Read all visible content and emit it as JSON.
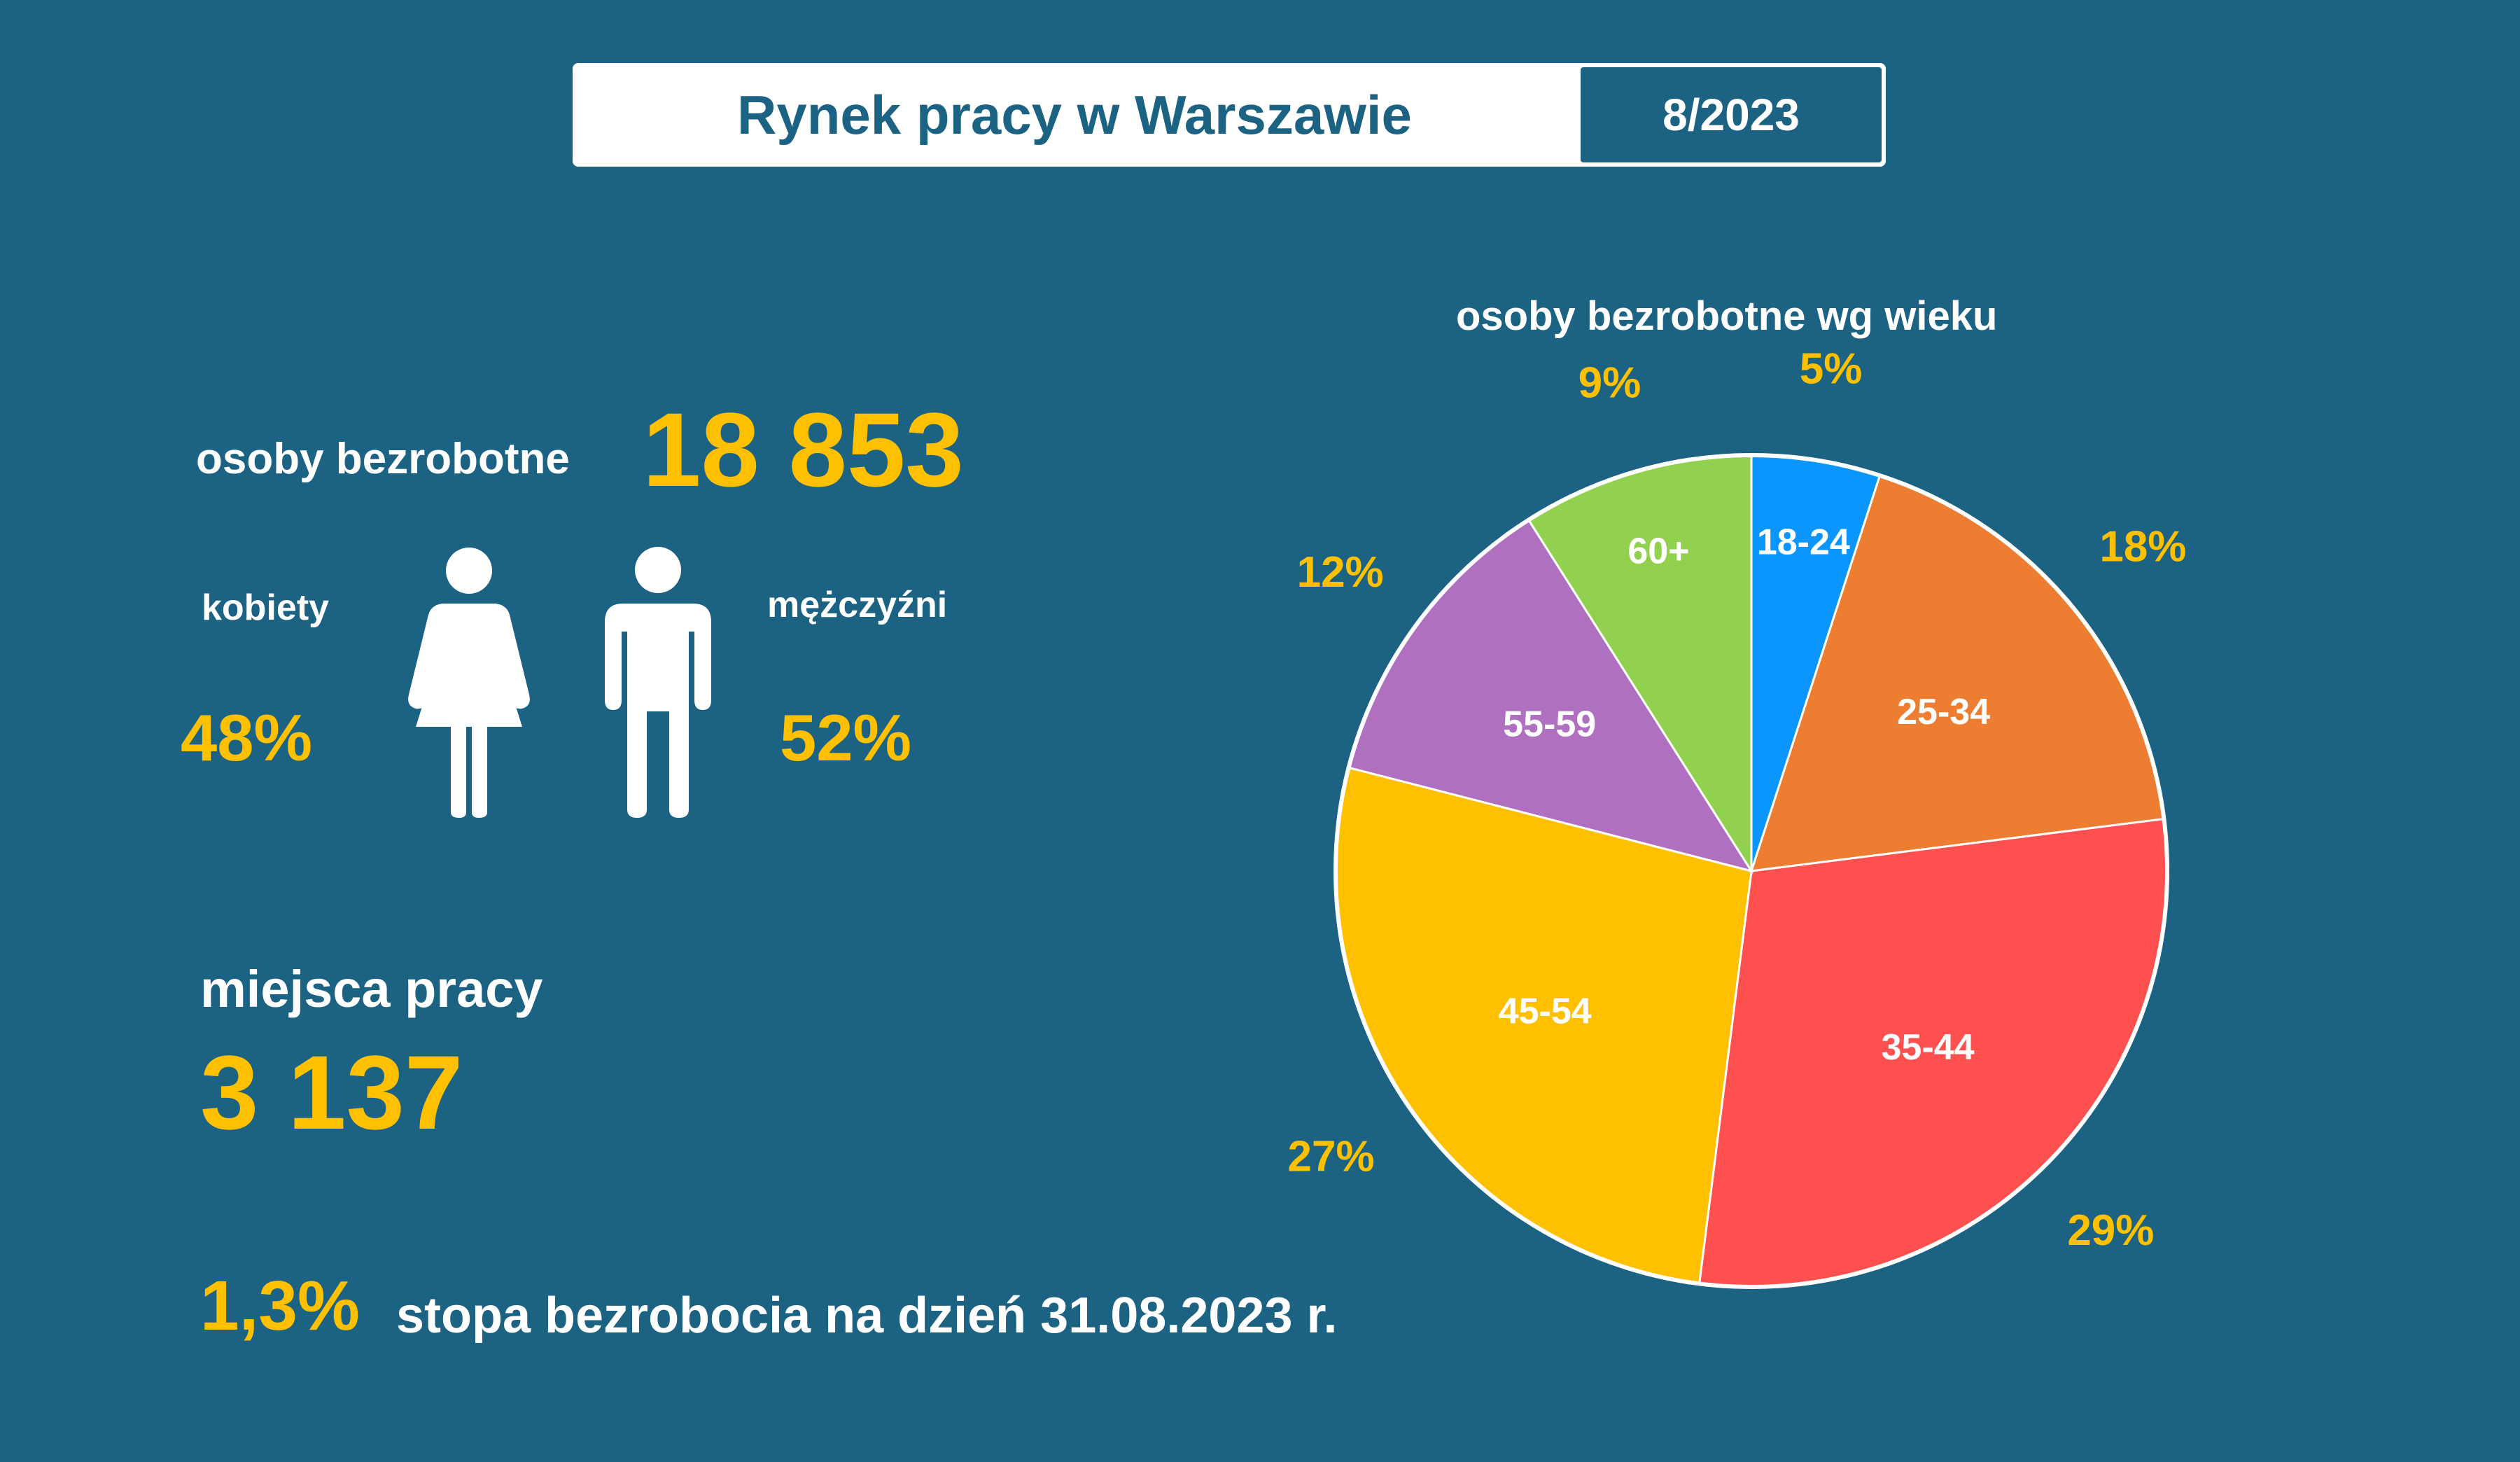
{
  "header": {
    "title": "Rynek pracy w Warszawie",
    "date": "8/2023"
  },
  "stats": {
    "unemployed_label": "osoby bezrobotne",
    "unemployed_value": "18 853",
    "women_label": "kobiety",
    "women_value": "48%",
    "men_label": "mężczyźni",
    "men_value": "52%",
    "jobs_label": "miejsca pracy",
    "jobs_value": "3 137",
    "rate_value": "1,3%",
    "rate_label": "stopa bezrobocia na dzień 31.08.2023 r."
  },
  "icons": {
    "woman": "woman-icon",
    "man": "man-icon"
  },
  "chart_data": {
    "type": "pie",
    "title": "osoby bezrobotne wg wieku",
    "categories": [
      "18-24",
      "25-34",
      "35-44",
      "45-54",
      "55-59",
      "60+"
    ],
    "values": [
      5,
      18,
      29,
      27,
      12,
      9
    ],
    "value_labels": [
      "5%",
      "18%",
      "29%",
      "27%",
      "12%",
      "9%"
    ],
    "colors": [
      "#0b95ff",
      "#ed7d31",
      "#ff5050",
      "#ffc000",
      "#b070c0",
      "#92d050"
    ],
    "label_color": "#ffc000",
    "start": "top",
    "direction": "clockwise"
  }
}
